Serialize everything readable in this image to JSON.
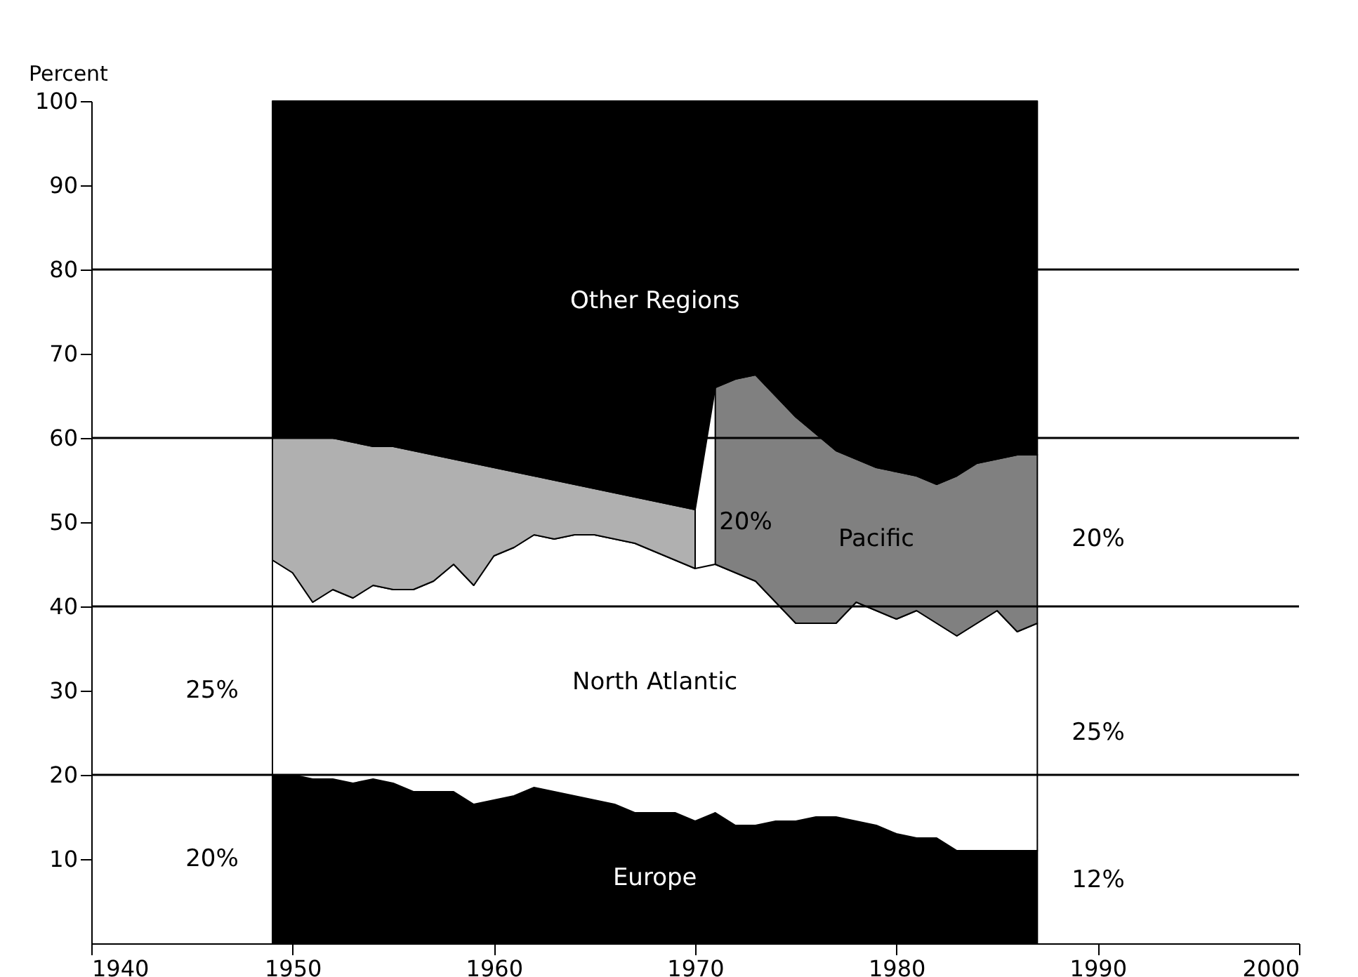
{
  "chart_data": {
    "type": "area",
    "stacked": true,
    "ylabel": "Percent",
    "x": [
      1949,
      1950,
      1951,
      1952,
      1953,
      1954,
      1955,
      1956,
      1957,
      1958,
      1959,
      1960,
      1961,
      1962,
      1963,
      1964,
      1965,
      1966,
      1967,
      1968,
      1969,
      1970,
      1971,
      1972,
      1973,
      1974,
      1975,
      1976,
      1977,
      1978,
      1979,
      1980,
      1981,
      1982,
      1983,
      1984,
      1985,
      1986,
      1987
    ],
    "series": [
      {
        "name": "Europe",
        "color": "#000000",
        "values": [
          20,
          20,
          19.5,
          19.5,
          19,
          19.5,
          19,
          18,
          18,
          18,
          16.5,
          17,
          17.5,
          18.5,
          18,
          17.5,
          17,
          16.5,
          15.5,
          15.5,
          15.5,
          14.5,
          15.5,
          14,
          14,
          14.5,
          14.5,
          15,
          15,
          14.5,
          14,
          13,
          12.5,
          12.5,
          11,
          11,
          11,
          11,
          11
        ]
      },
      {
        "name": "North Atlantic",
        "color": "#ffffff",
        "values": [
          25.5,
          24,
          21,
          22.5,
          22,
          23,
          23,
          24,
          25,
          27,
          26,
          29,
          29.5,
          30,
          30,
          31,
          31.5,
          31.5,
          32,
          31,
          30,
          30,
          29.5,
          30,
          29,
          26,
          23.5,
          23,
          23,
          26,
          25.5,
          25.5,
          27,
          25.5,
          25.5,
          27,
          28.5,
          26,
          27
        ]
      },
      {
        "color": "#b0b0b0",
        "values": [
          14.5,
          16,
          19.5,
          18,
          18.5,
          16.5,
          17,
          16.5,
          15,
          12.5,
          14.5,
          10.5,
          9,
          7,
          7,
          6,
          5.5,
          5.5,
          5.5,
          6,
          6.5,
          7,
          null,
          null,
          null,
          null,
          null,
          null,
          null,
          null,
          null,
          null,
          null,
          null,
          null,
          null,
          null,
          null,
          null
        ]
      },
      {
        "name": "Pacific",
        "color": "#808080",
        "values": [
          null,
          null,
          null,
          null,
          null,
          null,
          null,
          null,
          null,
          null,
          null,
          null,
          null,
          null,
          null,
          null,
          null,
          null,
          null,
          null,
          null,
          null,
          21,
          23,
          24.5,
          24.5,
          24.5,
          22.5,
          20.5,
          17,
          17,
          17.5,
          16,
          16.5,
          19,
          19,
          18,
          21,
          20
        ]
      },
      {
        "name": "Other Regions",
        "color": "#000000",
        "values": [
          40,
          40,
          40,
          40,
          40.5,
          41,
          41,
          41.5,
          42,
          42.5,
          43,
          43.5,
          44,
          44.5,
          45,
          45.5,
          46,
          46.5,
          47,
          47.5,
          48,
          48.5,
          34,
          33,
          32.5,
          35,
          37.5,
          39.5,
          41.5,
          42.5,
          43.5,
          44,
          44.5,
          45.5,
          44.5,
          43,
          42.5,
          42,
          42
        ]
      }
    ],
    "xlim": [
      1940,
      2000
    ],
    "xticks": [
      1940,
      1950,
      1960,
      1970,
      1980,
      1990,
      2000
    ],
    "ylim": [
      0,
      100
    ],
    "yticks": [
      10,
      20,
      30,
      40,
      50,
      60,
      70,
      80,
      90,
      100
    ],
    "ref_lines": [
      {
        "axis": "y",
        "value": 20
      },
      {
        "axis": "y",
        "value": 40
      },
      {
        "axis": "y",
        "value": 60
      },
      {
        "axis": "y",
        "value": 80
      }
    ],
    "annotations": [
      "25%",
      "20%",
      "20%",
      "20%",
      "25%",
      "12%"
    ],
    "grid": false
  }
}
